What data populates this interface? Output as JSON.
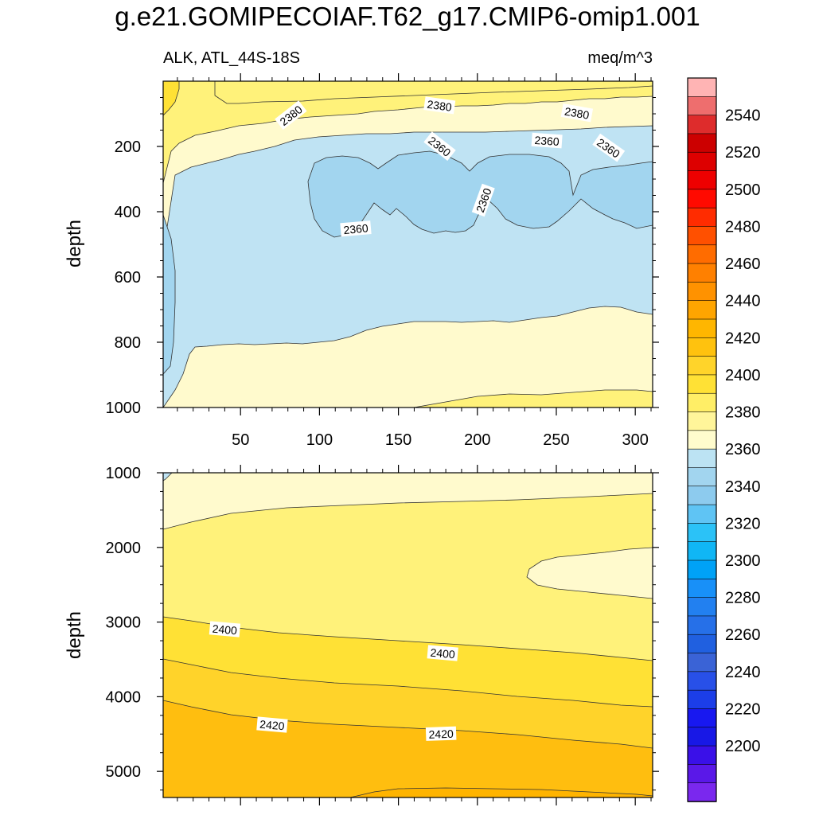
{
  "title": "g.e21.GOMIPECOIAF.T62_g17.CMIP6-omip1.001",
  "subtitle_left": "ALK, ATL_44S-18S",
  "subtitle_right": "meq/m^3",
  "chart_data": [
    {
      "type": "heatmap",
      "name": "upper-panel",
      "ylabel": "depth",
      "xlabel": "",
      "xlim": [
        1,
        311
      ],
      "ylim": [
        1000,
        0
      ],
      "x_ticks": [
        50,
        100,
        150,
        200,
        250,
        300
      ],
      "y_ticks": [
        200,
        400,
        600,
        800,
        1000
      ],
      "regions": [
        {
          "level": 2380,
          "color": "#fffacd",
          "boundary_depths": [
            {
              "x": 5,
              "top": 160,
              "bottom": 320
            },
            {
              "x": 50,
              "top": 150,
              "bottom": 220
            },
            {
              "x": 100,
              "top": 140,
              "bottom": 180
            },
            {
              "x": 200,
              "top": 130,
              "bottom": 170
            },
            {
              "x": 300,
              "top": 130,
              "bottom": 150
            }
          ]
        },
        {
          "level": 2360,
          "color": "#bfe3f3",
          "range_depths": [
            {
              "x": 5,
              "top": 320,
              "bottom": 1000
            },
            {
              "x": 30,
              "top": 210,
              "bottom": 810
            },
            {
              "x": 100,
              "top": 180,
              "bottom": 800
            },
            {
              "x": 150,
              "top": 170,
              "bottom": 770
            },
            {
              "x": 200,
              "top": 170,
              "bottom": 730
            },
            {
              "x": 311,
              "top": 150,
              "bottom": 700
            }
          ]
        },
        {
          "level": 2350,
          "color": "#a2d5ef",
          "note_depth_range": [
            230,
            490
          ]
        },
        {
          "level": 2390,
          "color": "#fff27a",
          "surface": true
        }
      ],
      "contour_labels": [
        {
          "text": "2380",
          "x": 82,
          "y": 105,
          "rotate": -38
        },
        {
          "text": "2380",
          "x": 176,
          "y": 75,
          "rotate": 8
        },
        {
          "text": "2380",
          "x": 263,
          "y": 98,
          "rotate": 10
        },
        {
          "text": "2360",
          "x": 176,
          "y": 200,
          "rotate": 38
        },
        {
          "text": "2360",
          "x": 244,
          "y": 183,
          "rotate": 4
        },
        {
          "text": "2360",
          "x": 283,
          "y": 205,
          "rotate": 35
        },
        {
          "text": "2360",
          "x": 204,
          "y": 365,
          "rotate": -70
        },
        {
          "text": "2360",
          "x": 123,
          "y": 453,
          "rotate": -5
        }
      ]
    },
    {
      "type": "heatmap",
      "name": "lower-panel",
      "ylabel": "depth",
      "xlabel": "",
      "xlim": [
        1,
        311
      ],
      "ylim": [
        5350,
        1000
      ],
      "y_ticks": [
        1000,
        2000,
        3000,
        4000,
        5000
      ],
      "regions": [
        {
          "level": 2380,
          "color": "#fffacd",
          "note": "upper-left band near 1000 m"
        },
        {
          "level": 2390,
          "color": "#fff27a",
          "note": "mid-depth 1200-3400 m"
        },
        {
          "level": 2400,
          "color": "#ffe135",
          "note": "3000-4400 m"
        },
        {
          "level": 2410,
          "color": "#ffd32a",
          "note": "3500-4700 m"
        },
        {
          "level": 2420,
          "color": "#ffbe0f",
          "note": "bottom"
        }
      ],
      "contour_labels": [
        {
          "text": "2400",
          "x": 40,
          "y": 3100,
          "rotate": 5
        },
        {
          "text": "2400",
          "x": 178,
          "y": 3420,
          "rotate": 5
        },
        {
          "text": "2420",
          "x": 70,
          "y": 4380,
          "rotate": 5
        },
        {
          "text": "2420",
          "x": 177,
          "y": 4500,
          "rotate": -2
        }
      ]
    }
  ],
  "colorbar": {
    "labels": [
      "2540",
      "2520",
      "2500",
      "2480",
      "2460",
      "2440",
      "2420",
      "2400",
      "2380",
      "2360",
      "2340",
      "2320",
      "2300",
      "2280",
      "2260",
      "2240",
      "2220",
      "2200"
    ],
    "colors": [
      "#ffb4b4",
      "#ee6e6e",
      "#de2c2c",
      "#cc0000",
      "#dd0000",
      "#ee0000",
      "#ff0a00",
      "#ff2c00",
      "#ff5000",
      "#ff6c00",
      "#ff8000",
      "#ff9200",
      "#ffa500",
      "#ffb600",
      "#ffc20e",
      "#ffd42a",
      "#ffe135",
      "#ffee66",
      "#fff59a",
      "#fffccd",
      "#bce3f3",
      "#a2d5ef",
      "#8dcbee",
      "#5fc4f4",
      "#2bc2f7",
      "#10b6f5",
      "#00a2f7",
      "#1890f8",
      "#2280f0",
      "#2670e8",
      "#2060e0",
      "#3a63d6",
      "#2850e8",
      "#1c3ee8",
      "#1818f0",
      "#1818e6",
      "#3a10e8",
      "#5a18e8",
      "#7a28ee"
    ]
  }
}
